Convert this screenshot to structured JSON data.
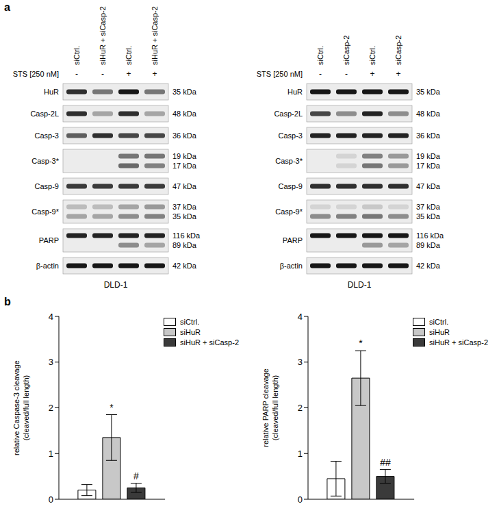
{
  "panel_labels": [
    "a",
    "b"
  ],
  "blots": [
    {
      "columns": [
        "siCtrl.",
        "siHuR + siCasp-2",
        "siCtrl.",
        "siHuR + siCasp-2"
      ],
      "treatment": {
        "label": "STS [250 nM]",
        "signs": [
          "-",
          "-",
          "+",
          "+"
        ]
      },
      "cell_line": "DLD-1",
      "rows": [
        {
          "label": "HuR",
          "kda": [
            "35 kDa"
          ],
          "intensity": [
            [
              0.8,
              0.5,
              0.9,
              0.5
            ]
          ]
        },
        {
          "label": "Casp-2L",
          "kda": [
            "48 kDa"
          ],
          "intensity": [
            [
              0.8,
              0.3,
              0.8,
              0.3
            ]
          ]
        },
        {
          "label": "Casp-3",
          "kda": [
            "36 kDa"
          ],
          "intensity": [
            [
              0.6,
              0.8,
              0.7,
              0.7
            ]
          ]
        },
        {
          "label": "Casp-3*",
          "kda": [
            "19 kDa",
            "17 kDa"
          ],
          "intensity": [
            [
              0,
              0,
              0.5,
              0.5
            ],
            [
              0,
              0,
              0.55,
              0.45
            ]
          ]
        },
        {
          "label": "Casp-9",
          "kda": [
            "47 kDa"
          ],
          "intensity": [
            [
              0.75,
              0.75,
              0.75,
              0.75
            ]
          ]
        },
        {
          "label": "Casp-9*",
          "kda": [
            "37 kDa",
            "35 kDa"
          ],
          "intensity": [
            [
              0.2,
              0.2,
              0.3,
              0.35
            ],
            [
              0.3,
              0.3,
              0.4,
              0.45
            ]
          ]
        },
        {
          "label": "PARP",
          "kda": [
            "116 kDa",
            "89 kDa"
          ],
          "intensity": [
            [
              0.85,
              0.85,
              0.85,
              0.85
            ],
            [
              0,
              0,
              0.4,
              0.3
            ]
          ]
        },
        {
          "label": "β-actin",
          "kda": [
            "42 kDa"
          ],
          "intensity": [
            [
              0.9,
              0.9,
              0.9,
              0.9
            ]
          ]
        }
      ]
    },
    {
      "columns": [
        "siCtrl.",
        "siCasp-2",
        "siCtrl.",
        "siCasp-2"
      ],
      "treatment": {
        "label": "STS [250 nM]",
        "signs": [
          "-",
          "-",
          "+",
          "+"
        ]
      },
      "cell_line": "DLD-1",
      "rows": [
        {
          "label": "HuR",
          "kda": [
            "35 kDa"
          ],
          "intensity": [
            [
              0.9,
              0.9,
              0.9,
              0.9
            ]
          ]
        },
        {
          "label": "Casp-2L",
          "kda": [
            "48 kDa"
          ],
          "intensity": [
            [
              0.7,
              0.4,
              0.85,
              0.4
            ]
          ]
        },
        {
          "label": "Casp-3",
          "kda": [
            "36 kDa"
          ],
          "intensity": [
            [
              0.85,
              0.85,
              0.85,
              0.85
            ]
          ]
        },
        {
          "label": "Casp-3*",
          "kda": [
            "19 kDa",
            "17 kDa"
          ],
          "intensity": [
            [
              0,
              0.1,
              0.45,
              0.35
            ],
            [
              0,
              0.1,
              0.5,
              0.35
            ]
          ]
        },
        {
          "label": "Casp-9",
          "kda": [
            "47 kDa"
          ],
          "intensity": [
            [
              0.8,
              0.8,
              0.8,
              0.8
            ]
          ]
        },
        {
          "label": "Casp-9*",
          "kda": [
            "37 kDa",
            "35 kDa"
          ],
          "intensity": [
            [
              0.1,
              0.1,
              0.15,
              0.1
            ],
            [
              0.4,
              0.45,
              0.5,
              0.4
            ]
          ]
        },
        {
          "label": "PARP",
          "kda": [
            "116 kDa",
            "89 kDa"
          ],
          "intensity": [
            [
              0.9,
              0.9,
              0.9,
              0.9
            ],
            [
              0,
              0,
              0.35,
              0.3
            ]
          ]
        },
        {
          "label": "β-actin",
          "kda": [
            "42 kDa"
          ],
          "intensity": [
            [
              0.9,
              0.9,
              0.9,
              0.9
            ]
          ]
        }
      ]
    }
  ],
  "chart_data": [
    {
      "type": "bar",
      "y_label": [
        "relative Caspase-3 cleavage",
        "(cleaved/full length)"
      ],
      "categories": [
        null
      ],
      "ylim": [
        0,
        4
      ],
      "yticks": [
        0,
        1,
        2,
        3,
        4
      ],
      "tick_labels": "y",
      "legend": "top-right",
      "series": [
        {
          "name": "siCtrl.",
          "color": "#ffffff",
          "values": [
            0.2
          ],
          "error": [
            0.12
          ]
        },
        {
          "name": "siHuR",
          "color": "#c8c8c8",
          "values": [
            1.35
          ],
          "error": [
            0.5
          ],
          "annotation": "*"
        },
        {
          "name": "siHuR + siCasp-2",
          "color": "#3a3a3a",
          "values": [
            0.25
          ],
          "error": [
            0.1
          ],
          "annotation": "#"
        }
      ]
    },
    {
      "type": "bar",
      "y_label": [
        "relative PARP cleavage",
        "(cleaved/full length)"
      ],
      "categories": [
        null
      ],
      "ylim": [
        0,
        4
      ],
      "yticks": [
        0,
        1,
        2,
        3,
        4
      ],
      "tick_labels": "y",
      "legend": "top-right",
      "series": [
        {
          "name": "siCtrl.",
          "color": "#ffffff",
          "values": [
            0.45
          ],
          "error": [
            0.38
          ]
        },
        {
          "name": "siHuR",
          "color": "#c8c8c8",
          "values": [
            2.65
          ],
          "error": [
            0.6
          ],
          "annotation": "*"
        },
        {
          "name": "siHuR + siCasp-2",
          "color": "#3a3a3a",
          "values": [
            0.5
          ],
          "error": [
            0.15
          ],
          "annotation": "##"
        }
      ]
    }
  ]
}
